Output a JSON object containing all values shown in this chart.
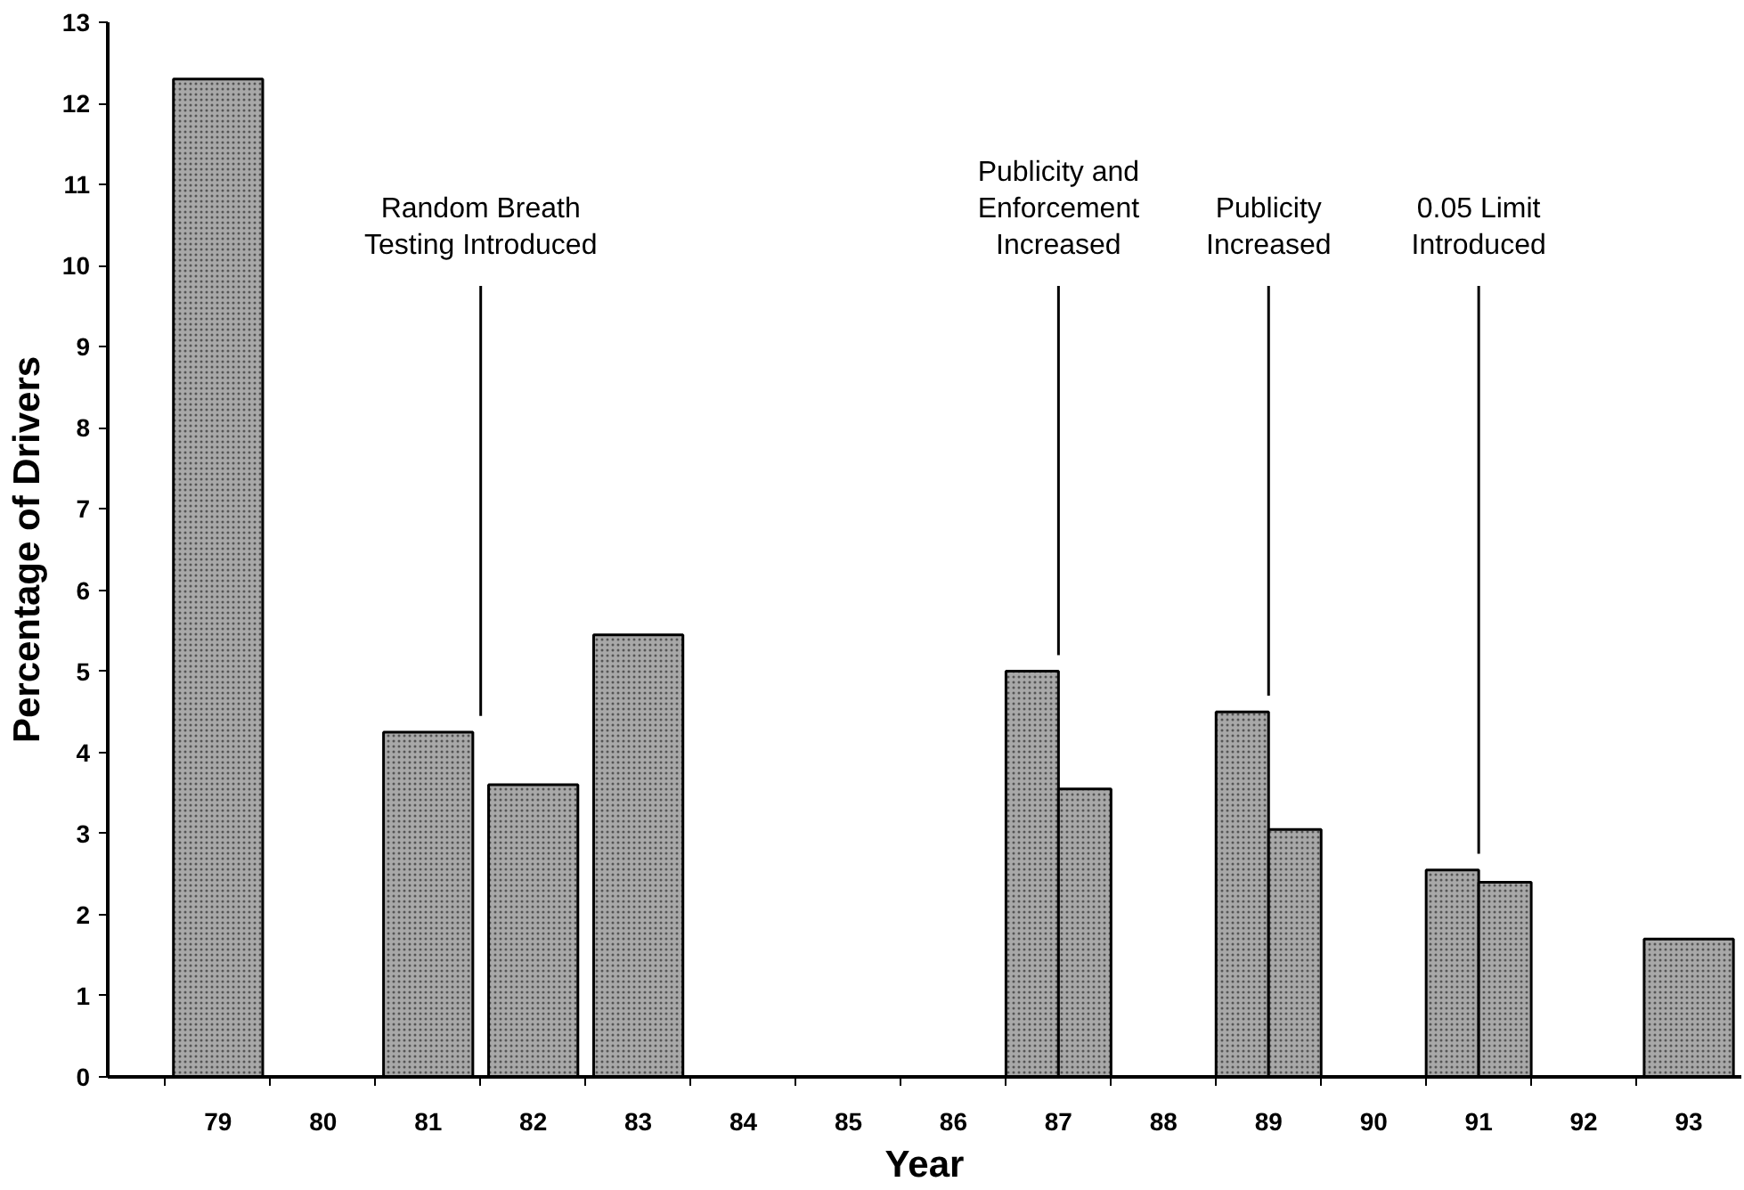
{
  "chart_data": {
    "type": "bar",
    "xlabel": "Year",
    "ylabel": "Percentage of Drivers",
    "x": [
      79,
      81,
      82,
      83,
      86.75,
      87.25,
      88.75,
      89.25,
      90.75,
      91.25,
      93
    ],
    "values": [
      12.3,
      4.25,
      3.6,
      5.45,
      5.0,
      3.55,
      4.5,
      3.05,
      2.55,
      2.4,
      1.7
    ],
    "color": "#a8a8a8",
    "xlim": [
      77.95,
      93.5
    ],
    "xticks": [
      {
        "value": 78.5,
        "label": null
      },
      79,
      {
        "value": 79.5,
        "label": null
      },
      80,
      {
        "value": 80.5,
        "label": null
      },
      81,
      {
        "value": 81.5,
        "label": null
      },
      82,
      {
        "value": 82.5,
        "label": null
      },
      83,
      {
        "value": 83.5,
        "label": null
      },
      84,
      {
        "value": 84.5,
        "label": null
      },
      85,
      {
        "value": 85.5,
        "label": null
      },
      86,
      {
        "value": 86.5,
        "label": null
      },
      87,
      {
        "value": 87.5,
        "label": null
      },
      88,
      {
        "value": 88.5,
        "label": null
      },
      89,
      {
        "value": 89.5,
        "label": null
      },
      90,
      {
        "value": 90.5,
        "label": null
      },
      91,
      {
        "value": 91.5,
        "label": null
      },
      92,
      {
        "value": 92.5,
        "label": null
      },
      93
    ],
    "ylim": [
      0,
      13
    ],
    "yticks": [
      0,
      1,
      2,
      3,
      4,
      5,
      6,
      7,
      8,
      9,
      10,
      11,
      12,
      13
    ],
    "ref_lines": [
      {
        "axis": "x",
        "value": 81.5,
        "label": "Random Breath\nTesting Introduced"
      },
      {
        "axis": "x",
        "value": 87,
        "label": "Publicity and\nEnforcement\nIncreased"
      },
      {
        "axis": "x",
        "value": 89,
        "label": "Publicity\nIncreased"
      },
      {
        "axis": "x",
        "value": 91,
        "label": "0.05 Limit\nIntroduced"
      }
    ],
    "grid": false
  }
}
